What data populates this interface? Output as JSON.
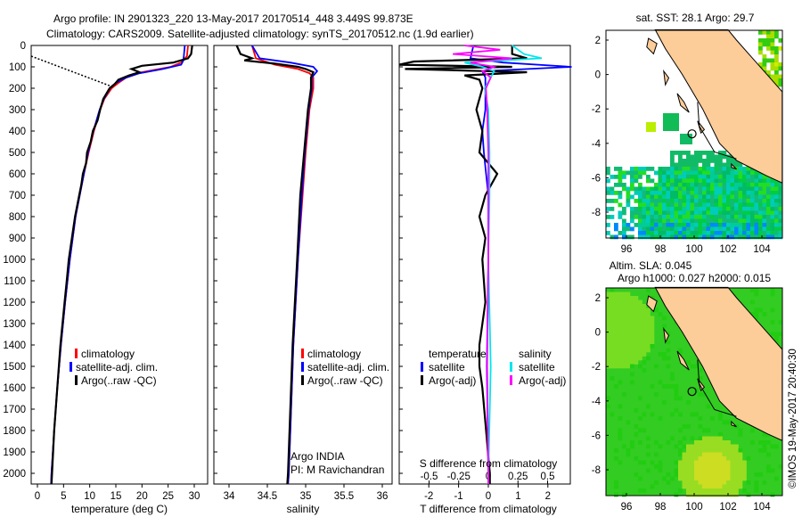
{
  "title_line1": "Argo profile: IN 2901323_220 13-May-2017 20170514_448 3.449S 99.873E",
  "title_line2": "Climatology: CARS2009. Satellite-adjusted climatology: synTS_20170512.nc (1.9d earlier)",
  "credit": "©IMOS 19-May-2017 20:40:30",
  "colors": {
    "climatology": "#ff0000",
    "satellite": "#0000ff",
    "argo": "#000000",
    "sal_satellite": "#00e5ee",
    "sal_argo": "#ff00ff",
    "land": "#fccc99"
  },
  "chart_data": [
    {
      "type": "line",
      "name": "temperature-profile",
      "xlabel": "temperature (deg C)",
      "ylabel": "",
      "xlim": [
        -2,
        31.5
      ],
      "ylim": [
        2050,
        0
      ],
      "xticks": [
        0,
        5,
        10,
        15,
        20,
        25,
        30
      ],
      "yticks": [
        0,
        100,
        200,
        300,
        400,
        500,
        600,
        700,
        800,
        900,
        1000,
        1100,
        1200,
        1300,
        1400,
        1500,
        1600,
        1700,
        1800,
        1900,
        2000
      ],
      "legend": [
        "climatology",
        "satellite-adj. clim.",
        "Argo(..raw -QC)"
      ],
      "series": [
        {
          "name": "climatology",
          "color": "#ff0000",
          "depth": [
            0,
            50,
            80,
            100,
            125,
            150,
            175,
            200,
            250,
            300,
            400,
            500,
            600,
            700,
            800,
            1000,
            1200,
            1400,
            1600,
            1800,
            2000,
            2050
          ],
          "values": [
            28.8,
            28.6,
            27.5,
            25.5,
            20,
            17,
            15.5,
            14.2,
            12.8,
            12,
            10.8,
            9.8,
            8.9,
            8.1,
            7.3,
            6.2,
            5.3,
            4.5,
            3.8,
            3.2,
            2.7,
            2.6
          ]
        },
        {
          "name": "satellite-adj. clim.",
          "color": "#0000ff",
          "depth": [
            0,
            50,
            70,
            90,
            110,
            130,
            150,
            175,
            200,
            250,
            300,
            400,
            500,
            600,
            700,
            800,
            1000,
            1200,
            1400,
            1600,
            1800,
            2000,
            2050
          ],
          "values": [
            28.2,
            28,
            27.9,
            27.5,
            24,
            19.5,
            17,
            15,
            13.9,
            12.7,
            11.9,
            10.7,
            9.7,
            8.9,
            8.1,
            7.3,
            6.2,
            5.3,
            4.5,
            3.8,
            3.2,
            2.7,
            2.6
          ]
        },
        {
          "name": "Argo(..raw -QC)",
          "color": "#000000",
          "depth": [
            0,
            40,
            60,
            80,
            95,
            110,
            125,
            140,
            160,
            180,
            200,
            250,
            300,
            350,
            400,
            450,
            500,
            550,
            600,
            650,
            700,
            800,
            900,
            1000,
            1100,
            1200,
            1400,
            1600,
            1800,
            2000,
            2050
          ],
          "values": [
            29.6,
            29.4,
            28.8,
            26,
            20,
            18,
            19.5,
            17.5,
            15.5,
            14.8,
            13.8,
            12.6,
            12,
            11.5,
            10.6,
            10.2,
            9.5,
            9.3,
            8.7,
            8.4,
            8,
            7.2,
            6.6,
            6,
            5.6,
            5.2,
            4.4,
            3.8,
            3.2,
            2.8,
            2.7
          ]
        }
      ]
    },
    {
      "type": "line",
      "name": "salinity-profile",
      "xlabel": "salinity",
      "xlim": [
        33.8,
        36.1
      ],
      "ylim": [
        2050,
        0
      ],
      "xticks": [
        34,
        34.5,
        35,
        35.5,
        36
      ],
      "legend": [
        "climatology",
        "satellite-adj. clim.",
        "Argo(..raw -QC)"
      ],
      "annotation": [
        "Argo INDIA",
        "PI: M Ravichandran"
      ],
      "series": [
        {
          "name": "climatology",
          "color": "#ff0000",
          "depth": [
            0,
            60,
            90,
            110,
            130,
            150,
            200,
            300,
            500,
            700,
            1000,
            1400,
            2000,
            2050
          ],
          "values": [
            34.3,
            34.35,
            34.6,
            34.9,
            35.05,
            35.1,
            35.1,
            35.05,
            35.0,
            34.96,
            34.9,
            34.84,
            34.78,
            34.77
          ]
        },
        {
          "name": "satellite-adj. clim.",
          "color": "#0000ff",
          "depth": [
            0,
            60,
            80,
            100,
            120,
            150,
            200,
            300,
            500,
            700,
            1000,
            1400,
            2000,
            2050
          ],
          "values": [
            34.3,
            34.4,
            34.8,
            35.1,
            35.15,
            35.08,
            35.08,
            35.04,
            34.99,
            34.95,
            34.9,
            34.84,
            34.78,
            34.77
          ]
        },
        {
          "name": "Argo(..raw -QC)",
          "color": "#000000",
          "depth": [
            0,
            40,
            60,
            70,
            85,
            100,
            110,
            125,
            150,
            200,
            300,
            500,
            700,
            1000,
            1400,
            2000,
            2050
          ],
          "values": [
            34.1,
            34.15,
            34.3,
            34.2,
            34.6,
            34.9,
            35.0,
            35.1,
            35.07,
            35.07,
            35.03,
            34.98,
            34.93,
            34.89,
            34.83,
            34.77,
            34.76
          ]
        }
      ]
    },
    {
      "type": "line",
      "name": "difference-profile",
      "xlabel": "T difference from climatology",
      "x2label": "S difference from climatology",
      "xlim": [
        -3,
        3
      ],
      "x2lim": [
        -0.75,
        0.75
      ],
      "xticks": [
        -2,
        -1,
        0,
        1,
        2
      ],
      "x2ticks": [
        -0.5,
        -0.25,
        0,
        0.25,
        0.5
      ],
      "x2ticklabels": [
        "-0.5",
        "-0.25",
        "0",
        "0.25",
        "0.5"
      ],
      "ylim": [
        2050,
        0
      ],
      "legend": {
        "temperature_title": "temperature",
        "salinity_title": "salinity",
        "entries": [
          "satellite",
          "Argo(-adj)",
          "satellite",
          "Argo(-adj)"
        ]
      },
      "series": [
        {
          "name": "T satellite",
          "axis": "T",
          "color": "#0000ff",
          "depth": [
            0,
            60,
            80,
            100,
            120,
            150,
            200,
            300,
            400,
            500,
            700,
            1000,
            1500,
            2000,
            2050
          ],
          "values": [
            -0.5,
            -0.6,
            0.5,
            2.8,
            -0.2,
            -0.1,
            -0.1,
            -0.1,
            -0.2,
            -0.15,
            0,
            0,
            -0.05,
            0,
            0
          ]
        },
        {
          "name": "T Argo(-adj)",
          "axis": "T",
          "color": "#000000",
          "depth": [
            0,
            40,
            60,
            75,
            90,
            100,
            110,
            125,
            140,
            160,
            200,
            300,
            400,
            500,
            600,
            700,
            800,
            900,
            1000,
            1200,
            1400,
            1500,
            1600,
            2000,
            2050
          ],
          "values": [
            0.8,
            0.8,
            1.3,
            -2.5,
            -3,
            0.8,
            -2.8,
            1.3,
            -0.8,
            -0.3,
            -0.2,
            -0.4,
            -0.2,
            -0.3,
            0.3,
            -0.1,
            -0.3,
            -0.1,
            -0.2,
            -0.1,
            -0.3,
            -0.3,
            -0.2,
            0.05,
            0.05
          ]
        },
        {
          "name": "S satellite",
          "axis": "S",
          "color": "#00e5ee",
          "depth": [
            0,
            40,
            60,
            80,
            100,
            120,
            150,
            200,
            300,
            500,
            700,
            1000,
            1500,
            2000,
            2050
          ],
          "values": [
            0.2,
            0.3,
            0.45,
            -0.2,
            -0.05,
            0.05,
            0.02,
            -0.03,
            0,
            0.01,
            0.01,
            0,
            0.02,
            0,
            0
          ]
        },
        {
          "name": "S Argo(-adj)",
          "axis": "S",
          "color": "#ff00ff",
          "depth": [
            0,
            20,
            40,
            60,
            80,
            100,
            120,
            150,
            200,
            300,
            500,
            700,
            1000,
            1500,
            2000,
            2050
          ],
          "values": [
            -0.2,
            0.1,
            -0.3,
            0.2,
            -0.15,
            0.05,
            -0.05,
            0.02,
            -0.02,
            -0.01,
            0,
            0,
            0,
            -0.01,
            0,
            0
          ]
        }
      ]
    },
    {
      "type": "heatmap",
      "name": "sst-map",
      "title": "sat. SST: 28.1 Argo: 29.7",
      "xlim": [
        94.8,
        105.2
      ],
      "ylim": [
        -9.5,
        2.6
      ],
      "xticks": [
        96,
        98,
        100,
        102,
        104
      ],
      "yticks": [
        2,
        0,
        -2,
        -4,
        -6,
        -8
      ],
      "marker": {
        "lon": 99.873,
        "lat": -3.449
      }
    },
    {
      "type": "heatmap",
      "name": "sla-map",
      "title_line1": "Altim. SLA: 0.045",
      "title_line2": "Argo h1000: 0.027 h2000: 0.015",
      "xlim": [
        94.8,
        105.2
      ],
      "ylim": [
        -9.5,
        2.6
      ],
      "xticks": [
        96,
        98,
        100,
        102,
        104
      ],
      "yticks": [
        2,
        0,
        -2,
        -4,
        -6,
        -8
      ],
      "marker": {
        "lon": 99.873,
        "lat": -3.449
      }
    }
  ]
}
